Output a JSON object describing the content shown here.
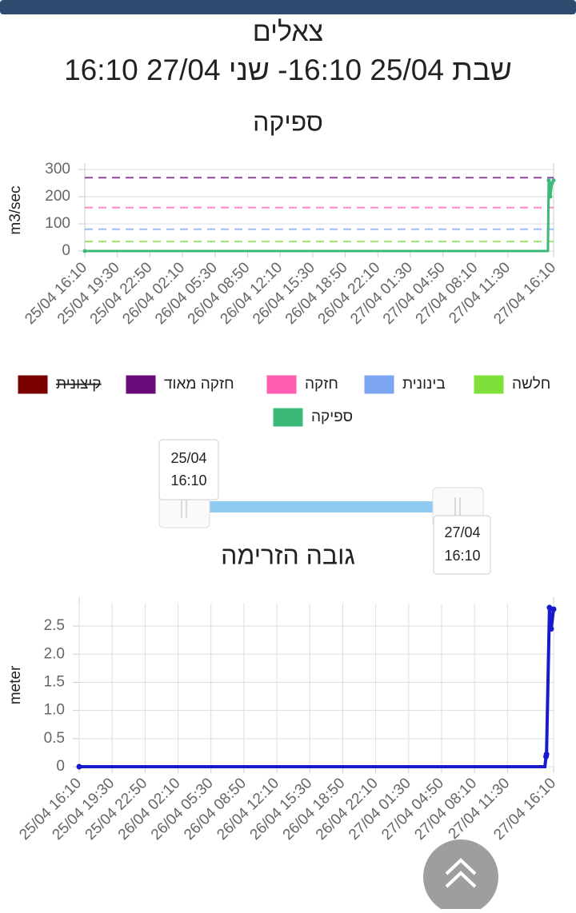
{
  "header": {
    "title": "צאלים",
    "subtitle": "שבת 25/04 16:10- שני 27/04 16:10"
  },
  "slider": {
    "start_date": "25/04",
    "start_time": "16:10",
    "end_date": "27/04",
    "end_time": "16:10"
  },
  "chart_data": [
    {
      "type": "line",
      "title": "ספיקה",
      "y_label": "m3/sec",
      "xlim": [
        0,
        2880
      ],
      "xticks": [
        {
          "value": 0,
          "label": "25/04 16:10"
        },
        {
          "value": 200,
          "label": "25/04 19:30"
        },
        {
          "value": 400,
          "label": "25/04 22:50"
        },
        {
          "value": 600,
          "label": "26/04 02:10"
        },
        {
          "value": 800,
          "label": "26/04 05:30"
        },
        {
          "value": 1000,
          "label": "26/04 08:50"
        },
        {
          "value": 1200,
          "label": "26/04 12:10"
        },
        {
          "value": 1400,
          "label": "26/04 15:30"
        },
        {
          "value": 1600,
          "label": "26/04 18:50"
        },
        {
          "value": 1800,
          "label": "26/04 22:10"
        },
        {
          "value": 2000,
          "label": "27/04 01:30"
        },
        {
          "value": 2200,
          "label": "27/04 04:50"
        },
        {
          "value": 2400,
          "label": "27/04 08:10"
        },
        {
          "value": 2600,
          "label": "27/04 11:30"
        },
        {
          "value": 2880,
          "label": "27/04 16:10"
        }
      ],
      "ylim": [
        0,
        300
      ],
      "yticks": [
        0,
        100,
        200,
        300
      ],
      "grid": true,
      "thresholds": [
        {
          "name": "חלשה",
          "color": "#7fe03a",
          "value": 35
        },
        {
          "name": "בינונית",
          "color": "#7ea6f0",
          "value": 80
        },
        {
          "name": "חזקה",
          "color": "#ff5db1",
          "value": 160
        },
        {
          "name": "חזקה מאוד",
          "color": "#6a0a7a",
          "value": 270
        },
        {
          "name": "קיצונית",
          "color": "#7a0000",
          "hidden": true
        }
      ],
      "series": [
        {
          "name": "ספיקה",
          "color": "#3cb878",
          "x": [
            0,
            2845,
            2850,
            2860,
            2870,
            2880
          ],
          "values": [
            0,
            0,
            260,
            200,
            250,
            260
          ]
        }
      ]
    },
    {
      "type": "line",
      "title": "גובה הזרימה",
      "y_label": "meter",
      "xlim": [
        0,
        2880
      ],
      "xticks": [
        {
          "value": 0,
          "label": "25/04 16:10"
        },
        {
          "value": 200,
          "label": "25/04 19:30"
        },
        {
          "value": 400,
          "label": "25/04 22:50"
        },
        {
          "value": 600,
          "label": "26/04 02:10"
        },
        {
          "value": 800,
          "label": "26/04 05:30"
        },
        {
          "value": 1000,
          "label": "26/04 08:50"
        },
        {
          "value": 1200,
          "label": "26/04 12:10"
        },
        {
          "value": 1400,
          "label": "26/04 15:30"
        },
        {
          "value": 1600,
          "label": "26/04 18:50"
        },
        {
          "value": 1800,
          "label": "26/04 22:10"
        },
        {
          "value": 2000,
          "label": "27/04 01:30"
        },
        {
          "value": 2200,
          "label": "27/04 04:50"
        },
        {
          "value": 2400,
          "label": "27/04 08:10"
        },
        {
          "value": 2600,
          "label": "27/04 11:30"
        },
        {
          "value": 2880,
          "label": "27/04 16:10"
        }
      ],
      "ylim": [
        0,
        2.9
      ],
      "yticks": [
        0,
        0.5,
        {
          "value": 1,
          "label": "1.0"
        },
        1.5,
        {
          "value": 2,
          "label": "2.0"
        },
        2.5
      ],
      "grid": true,
      "series": [
        {
          "color": "#1a1acd",
          "x": [
            0,
            2827,
            2834,
            2837,
            2855,
            2865,
            2880
          ],
          "values": [
            0,
            0,
            0.18,
            0.22,
            2.83,
            2.45,
            2.8
          ]
        }
      ]
    }
  ]
}
